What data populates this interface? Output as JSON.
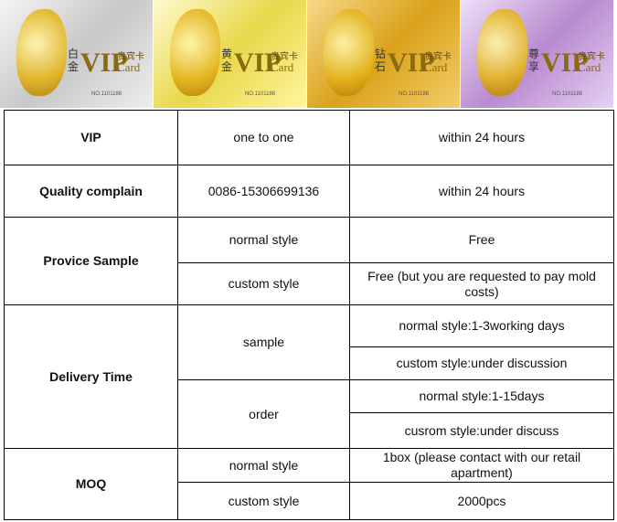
{
  "cards": [
    {
      "side": "白金",
      "title": "VIP",
      "subtitle": "Card",
      "tag": "贵宾卡",
      "number": "NO.1101188"
    },
    {
      "side": "黄金",
      "title": "VIP",
      "subtitle": "Card",
      "tag": "贵宾卡",
      "number": "NO.1101188"
    },
    {
      "side": "钻石",
      "title": "VIP",
      "subtitle": "Card",
      "tag": "贵宾卡",
      "number": "NO.1101188"
    },
    {
      "side": "尊享",
      "title": "VIP",
      "subtitle": "Card",
      "tag": "贵宾卡",
      "number": "NO.1101188"
    }
  ],
  "table": {
    "rows": [
      {
        "label": "VIP",
        "groups": [
          {
            "label": "one to one",
            "items": [
              "within 24 hours"
            ]
          }
        ]
      },
      {
        "label": "Quality complain",
        "groups": [
          {
            "label": "0086-15306699136",
            "items": [
              "within 24 hours"
            ]
          }
        ]
      },
      {
        "label": "Provice Sample",
        "groups": [
          {
            "label": "normal style",
            "items": [
              "Free"
            ]
          },
          {
            "label": "custom style",
            "items": [
              "Free (but you are requested to pay mold costs)"
            ]
          }
        ]
      },
      {
        "label": "Delivery Time",
        "groups": [
          {
            "label": "sample",
            "items": [
              "normal style:1-3working days",
              "custom style:under discussion"
            ]
          },
          {
            "label": "order",
            "items": [
              "normal style:1-15days",
              "cusrom style:under discuss"
            ]
          }
        ]
      },
      {
        "label": "MOQ",
        "groups": [
          {
            "label": "normal style",
            "items": [
              "1box (please contact with our retail apartment)"
            ]
          },
          {
            "label": "custom style",
            "items": [
              "2000pcs"
            ]
          }
        ]
      }
    ]
  }
}
